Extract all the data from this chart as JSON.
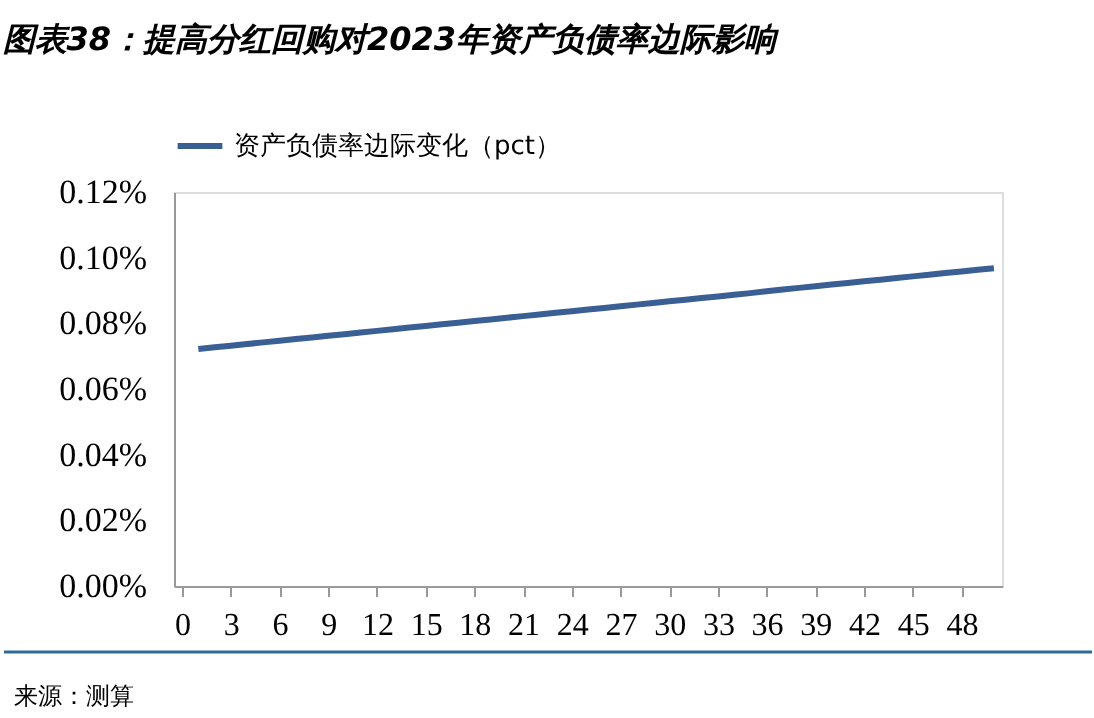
{
  "chart_data": {
    "type": "line",
    "title": "图表38：提高分红回购对2023年资产负债率边际影响",
    "x": [
      1,
      2,
      3,
      4,
      5,
      6,
      7,
      8,
      9,
      10,
      11,
      12,
      13,
      14,
      15,
      16,
      17,
      18,
      19,
      20,
      21,
      22,
      23,
      24,
      25,
      26,
      27,
      28,
      29,
      30,
      31,
      32,
      33,
      34,
      35,
      36,
      37,
      38,
      39,
      40,
      41,
      42,
      43,
      44,
      45,
      46,
      47,
      48,
      49,
      50
    ],
    "series": [
      {
        "name": "资产负债率边际变化（pct）",
        "color": "#3a5f94",
        "values": [
          0.0722,
          0.0727,
          0.0732,
          0.0737,
          0.0742,
          0.0747,
          0.0752,
          0.0757,
          0.0762,
          0.0767,
          0.0772,
          0.0777,
          0.0782,
          0.0787,
          0.0792,
          0.0797,
          0.0802,
          0.0807,
          0.0812,
          0.0817,
          0.0822,
          0.0827,
          0.0832,
          0.0837,
          0.0842,
          0.0847,
          0.0852,
          0.0857,
          0.0862,
          0.0867,
          0.0872,
          0.0877,
          0.0882,
          0.0887,
          0.0892,
          0.0898,
          0.0903,
          0.0908,
          0.0913,
          0.0918,
          0.0923,
          0.0928,
          0.0933,
          0.0938,
          0.0943,
          0.0948,
          0.0953,
          0.0958,
          0.0963,
          0.0968
        ]
      }
    ],
    "xlim": [
      -0.5,
      50.5
    ],
    "xticks": [
      0,
      3,
      6,
      9,
      12,
      15,
      18,
      21,
      24,
      27,
      30,
      33,
      36,
      39,
      42,
      45,
      48
    ],
    "ylim": [
      0,
      0.12
    ],
    "yticks": [
      {
        "value": 0,
        "label": "0.00%"
      },
      {
        "value": 0.02,
        "label": "0.02%"
      },
      {
        "value": 0.04,
        "label": "0.04%"
      },
      {
        "value": 0.06,
        "label": "0.06%"
      },
      {
        "value": 0.08,
        "label": "0.08%"
      },
      {
        "value": 0.1,
        "label": "0.10%"
      },
      {
        "value": 0.12,
        "label": "0.12%"
      }
    ],
    "grid": false,
    "legend": "top",
    "marker": "none",
    "line_style": "solid",
    "annotations": [
      "来源：测算"
    ]
  }
}
